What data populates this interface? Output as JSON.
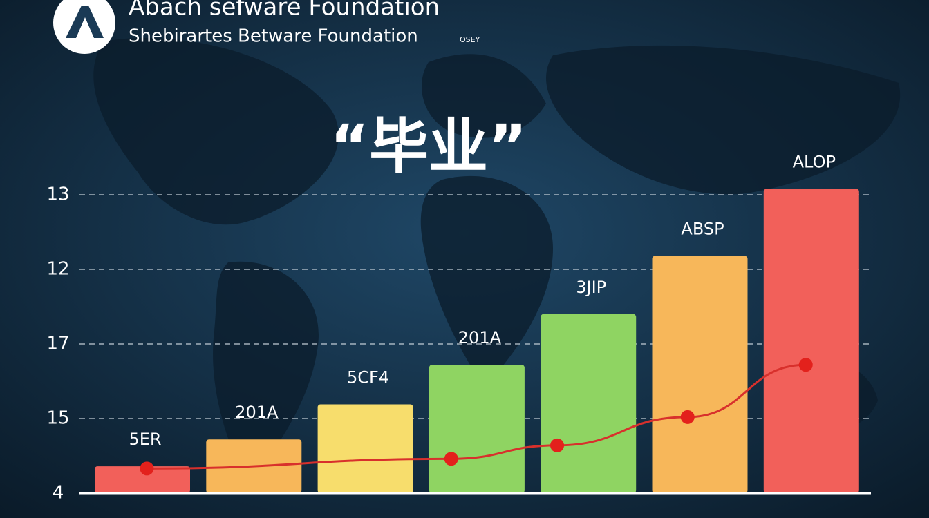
{
  "header": {
    "org_name": "Abach sefware Foundation",
    "org_subtitle": "Shebirartes Betware Foundation",
    "badge": "OSEY"
  },
  "chart_data": {
    "type": "bar",
    "title": "“毕业”",
    "categories": [
      null,
      null,
      null,
      null,
      null,
      null,
      null
    ],
    "values": [
      0.36,
      0.72,
      1.19,
      1.72,
      2.4,
      3.18,
      4.08
    ],
    "bar_labels": [
      "5ER",
      "201A",
      "5CF4",
      "201A",
      "3JIP",
      "ABSP",
      "ALOP"
    ],
    "colors": [
      "#f2605a",
      "#f7b75a",
      "#f7dd6c",
      "#8fd462",
      "#8fd462",
      "#f7b75a",
      "#f2605a"
    ],
    "line": {
      "x": [
        0.04,
        2.77,
        3.72,
        4.89,
        5.95
      ],
      "values": [
        0.33,
        0.46,
        0.64,
        1.02,
        1.72
      ],
      "color": "#d8302c"
    },
    "ylim": [
      0,
      4.3
    ],
    "yticks": [
      {
        "value": 0,
        "label": "4"
      },
      {
        "value": 1,
        "label": "15"
      },
      {
        "value": 2,
        "label": "17"
      },
      {
        "value": 3,
        "label": "12"
      },
      {
        "value": 4,
        "label": "13"
      }
    ],
    "grid": true
  }
}
